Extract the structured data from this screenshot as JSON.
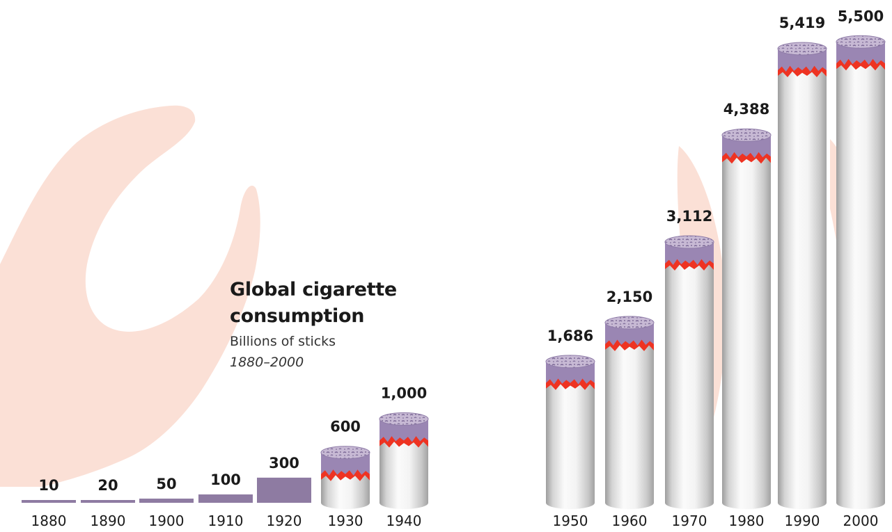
{
  "chart_data": {
    "type": "bar",
    "title": "Global cigarette consumption",
    "subtitle": "Billions of sticks",
    "period": "1880–2000",
    "categories": [
      "1880",
      "1890",
      "1900",
      "1910",
      "1920",
      "1930",
      "1940",
      "1950",
      "1960",
      "1970",
      "1980",
      "1990",
      "2000"
    ],
    "values": [
      10,
      20,
      50,
      100,
      300,
      600,
      1000,
      1686,
      2150,
      3112,
      4388,
      5419,
      5500
    ],
    "value_labels": [
      "10",
      "20",
      "50",
      "100",
      "300",
      "600",
      "1,000",
      "1,686",
      "2,150",
      "3,112",
      "4,388",
      "5,419",
      "5,500"
    ],
    "bar_style": [
      "flat",
      "flat",
      "flat",
      "flat",
      "flat",
      "cigarette",
      "cigarette",
      "cigarette",
      "cigarette",
      "cigarette",
      "cigarette",
      "cigarette",
      "cigarette"
    ],
    "colors": {
      "flat_bar": "#8e7ba2",
      "filter_purple": "#9a86b3",
      "ember_red": "#ee3322",
      "paper_light": "#f6f6f6",
      "paper_shadow": "#a8a8a8",
      "background_shape": "#fbe0d6"
    },
    "grid": false,
    "legend": "none"
  }
}
